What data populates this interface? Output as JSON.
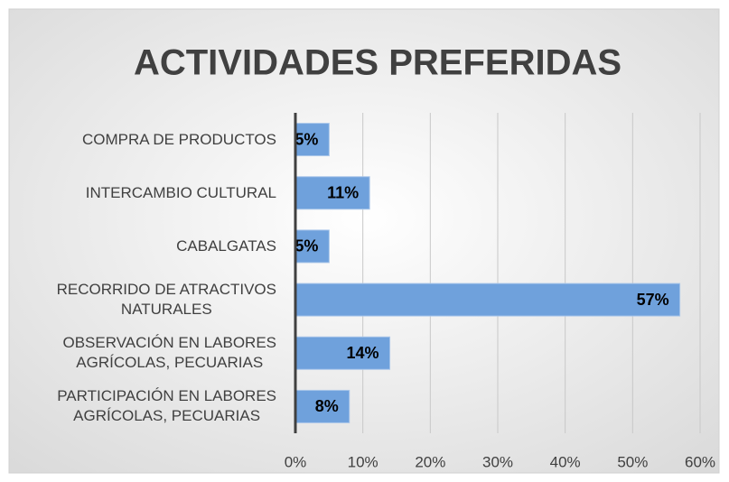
{
  "chart_data": {
    "type": "barh",
    "title": "ACTIVIDADES PREFERIDAS",
    "categories": [
      "COMPRA DE PRODUCTOS",
      "INTERCAMBIO CULTURAL",
      "CABALGATAS",
      "RECORRIDO DE ATRACTIVOS\nNATURALES",
      "OBSERVACIÓN EN LABORES\nAGRÍCOLAS, PECUARIAS",
      "PARTICIPACIÓN EN LABORES\nAGRÍCOLAS, PECUARIAS"
    ],
    "values": [
      5,
      11,
      5,
      57,
      14,
      8
    ],
    "value_labels": [
      "5%",
      "11%",
      "5%",
      "57%",
      "14%",
      "8%"
    ],
    "color": "#6fa1dc",
    "xlim": [
      0,
      60
    ],
    "xticks": [
      {
        "value": 0,
        "label": "0%"
      },
      {
        "value": 10,
        "label": "10%"
      },
      {
        "value": 20,
        "label": "20%"
      },
      {
        "value": 30,
        "label": "30%"
      },
      {
        "value": 40,
        "label": "40%"
      },
      {
        "value": 50,
        "label": "50%"
      },
      {
        "value": 60,
        "label": "60%"
      }
    ],
    "grid": true
  }
}
